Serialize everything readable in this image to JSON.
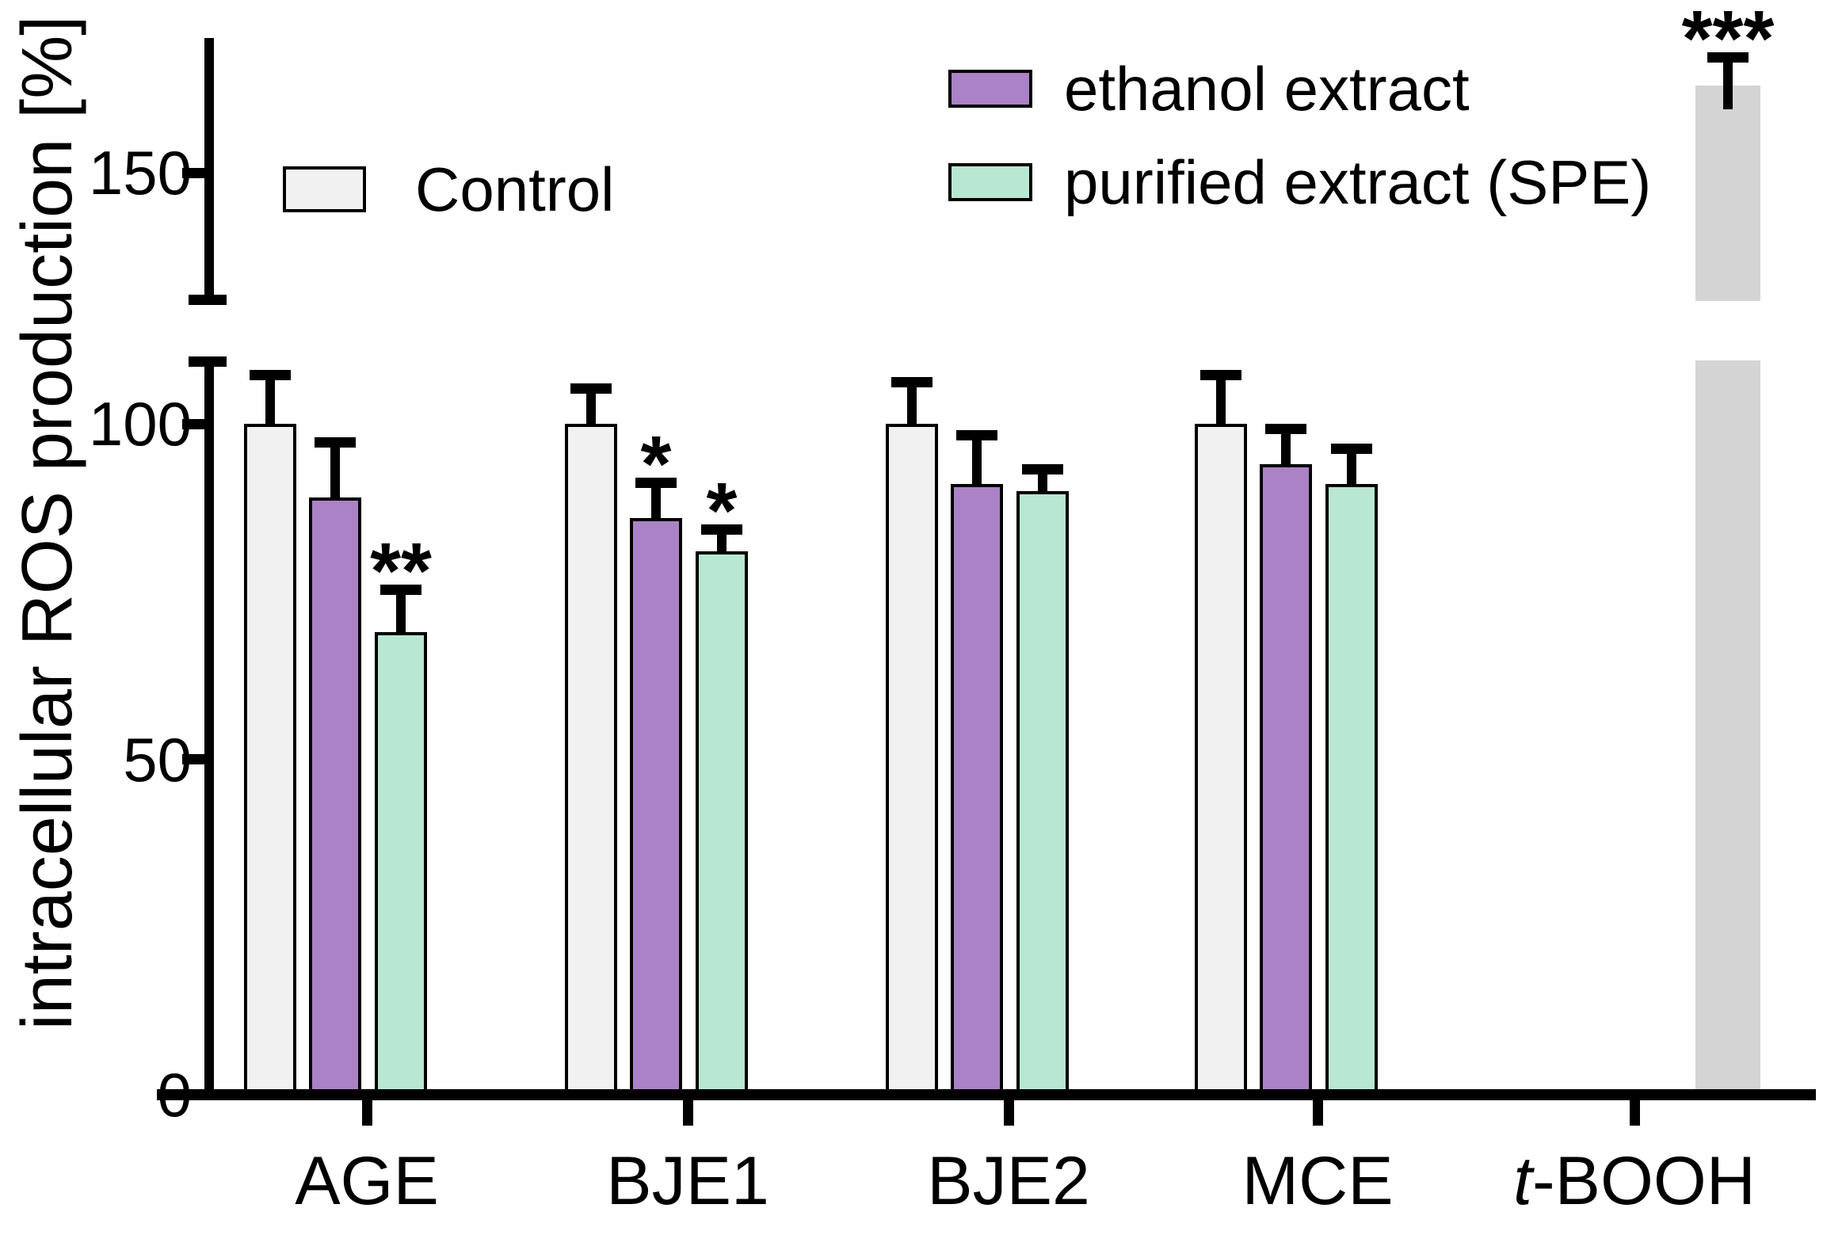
{
  "figure": {
    "background": "#ffffff",
    "axis_color": "#000000"
  },
  "chart_data": {
    "type": "bar",
    "title": "",
    "xlabel": "",
    "ylabel": "intracellular ROS production [%]",
    "categories": [
      "AGE",
      "BJE1",
      "BJE2",
      "MCE",
      "t-BOOH"
    ],
    "y_axis": {
      "unit": "%",
      "lower_ticks": [
        0,
        50,
        100
      ],
      "upper_ticks": [
        150
      ],
      "lower_range": [
        0,
        110
      ],
      "upper_range": [
        130,
        170
      ],
      "axis_break": [
        110,
        130
      ]
    },
    "grid": false,
    "legend_position": "top",
    "series": [
      {
        "name": "Control",
        "color": "#f1f1f1",
        "outlined": true,
        "in_legend": true,
        "values": [
          100,
          100,
          100,
          100,
          null
        ],
        "errors": [
          8,
          6,
          7,
          8,
          null
        ]
      },
      {
        "name": "ethanol extract",
        "color": "#aa82c5",
        "outlined": true,
        "in_legend": true,
        "values": [
          89,
          86,
          91,
          94,
          null
        ],
        "errors": [
          9,
          6,
          8,
          6,
          null
        ]
      },
      {
        "name": "purified extract (SPE)",
        "color": "#b8e7d2",
        "outlined": true,
        "in_legend": true,
        "values": [
          69,
          81,
          90,
          91,
          null
        ],
        "errors": [
          7,
          4,
          4,
          6,
          null
        ]
      },
      {
        "name": "t-BOOH",
        "color": "#d4d4d4",
        "outlined": false,
        "in_legend": false,
        "values": [
          null,
          null,
          null,
          null,
          163
        ],
        "errors": [
          null,
          null,
          null,
          null,
          5
        ]
      }
    ],
    "significance": [
      {
        "category": "AGE",
        "series_index": 2,
        "label": "**"
      },
      {
        "category": "BJE1",
        "series_index": 1,
        "label": "*"
      },
      {
        "category": "BJE1",
        "series_index": 2,
        "label": "*"
      },
      {
        "category": "t-BOOH",
        "series_index": 3,
        "label": "***"
      }
    ]
  }
}
